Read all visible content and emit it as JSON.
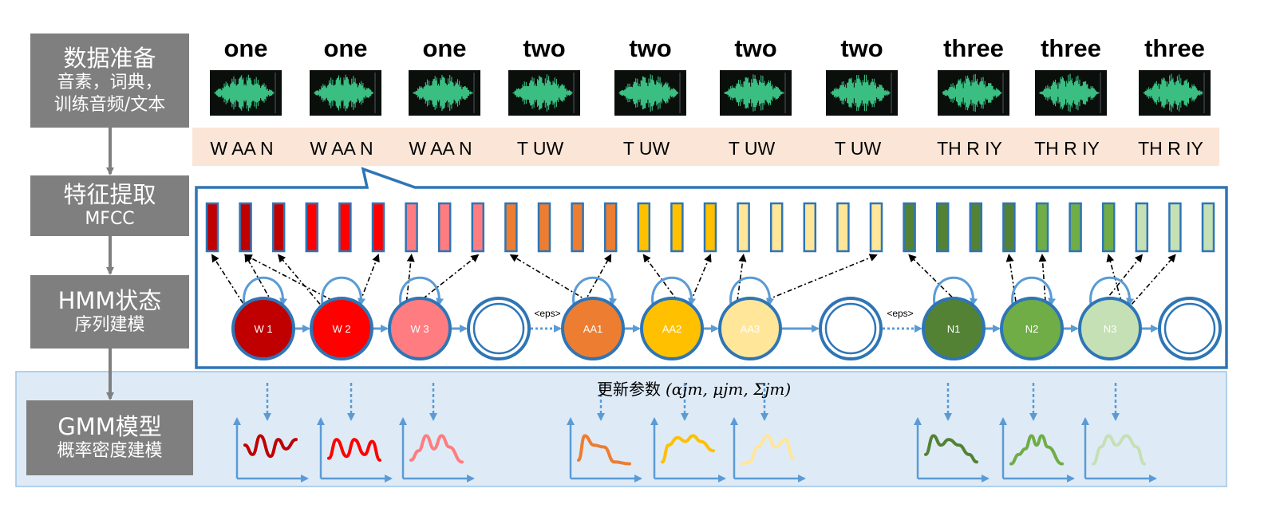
{
  "stages": [
    {
      "title": "数据准备",
      "subtitle": [
        "音素，词典，",
        "训练音频/文本"
      ]
    },
    {
      "title": "特征提取",
      "subtitle": [
        "MFCC"
      ]
    },
    {
      "title": "HMM状态",
      "subtitle": [
        "序列建模"
      ]
    },
    {
      "title": "GMM模型",
      "subtitle": [
        "概率密度建模"
      ]
    }
  ],
  "words": [
    "one",
    "one",
    "one",
    "two",
    "two",
    "two",
    "two",
    "three",
    "three",
    "three"
  ],
  "phonemes": [
    "W AA N",
    "W AA N",
    "W AA N",
    "T UW",
    "T UW",
    "T UW",
    "T UW",
    "TH R IY",
    "TH R IY",
    "TH R IY"
  ],
  "hmm_states": [
    {
      "label": "W 1",
      "color": "#c00000"
    },
    {
      "label": "W 2",
      "color": "#ff0000"
    },
    {
      "label": "W 3",
      "color": "#ff7c80"
    },
    {
      "label": "",
      "color": "#ffffff"
    },
    {
      "label": "AA1",
      "color": "#ed7d31"
    },
    {
      "label": "AA2",
      "color": "#ffc000"
    },
    {
      "label": "AA3",
      "color": "#ffe699"
    },
    {
      "label": "",
      "color": "#ffffff"
    },
    {
      "label": "N1",
      "color": "#548235"
    },
    {
      "label": "N2",
      "color": "#70ad47"
    },
    {
      "label": "N3",
      "color": "#c5e0b4"
    },
    {
      "label": "",
      "color": "#ffffff"
    }
  ],
  "eps_labels": [
    "<eps>",
    "<eps>"
  ],
  "feature_frame_colors": [
    "#c00000",
    "#c00000",
    "#c00000",
    "#ff0000",
    "#ff0000",
    "#ff0000",
    "#ff7c80",
    "#ff7c80",
    "#ff7c80",
    "#ed7d31",
    "#ed7d31",
    "#ed7d31",
    "#ed7d31",
    "#ffc000",
    "#ffc000",
    "#ffc000",
    "#ffe699",
    "#ffe699",
    "#ffe699",
    "#ffe699",
    "#ffe699",
    "#548235",
    "#548235",
    "#548235",
    "#548235",
    "#70ad47",
    "#70ad47",
    "#70ad47",
    "#c5e0b4",
    "#c5e0b4",
    "#c5e0b4"
  ],
  "gmm_colors": [
    "#c00000",
    "#ff0000",
    "#ff7c80",
    "#ed7d31",
    "#ffc000",
    "#ffe699",
    "#548235",
    "#70ad47",
    "#c5e0b4"
  ],
  "update_params_label": "更新参数",
  "update_params_formula": "(αjm, μjm, Σjm)",
  "colors": {
    "stage_box": "#7f7f7f",
    "phoneme_band": "#fbe5d6",
    "hmm_border": "#2e75b6",
    "panel_bg": "#deebf7",
    "arrow_blue": "#5b9bd5"
  }
}
